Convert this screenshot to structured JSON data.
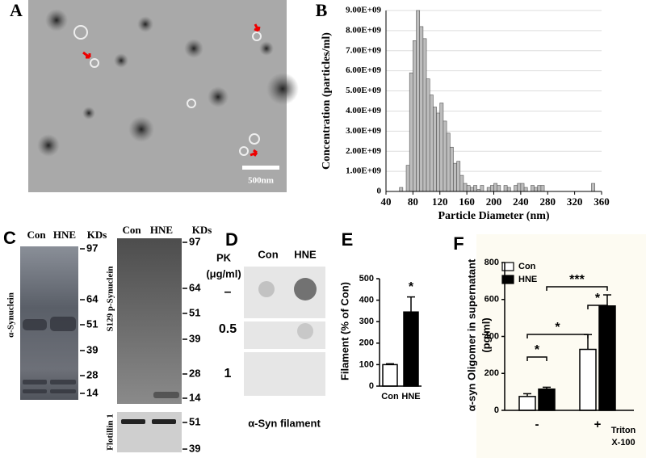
{
  "panel_a": {
    "label": "A",
    "scale_bar": "500nm"
  },
  "panel_c": {
    "label": "C",
    "left_blot": {
      "lanes": [
        "Con",
        "HNE"
      ],
      "unit": "KDs",
      "protein": "α-Synuclein",
      "markers": [
        97,
        64,
        51,
        39,
        28,
        14
      ]
    },
    "right_blot": {
      "lanes": [
        "Con",
        "HNE"
      ],
      "unit": "KDs",
      "protein": "S129 p-Synuclein",
      "markers": [
        97,
        64,
        51,
        39,
        28,
        14
      ],
      "loading_control": "Flotillin 1",
      "loading_markers": [
        51,
        39
      ]
    }
  },
  "panel_d": {
    "label": "D",
    "lanes": [
      "Con",
      "HNE"
    ],
    "pk_label": "PK",
    "pk_unit": "(μg/ml)",
    "doses": [
      "–",
      "0.5",
      "1"
    ],
    "caption": "α-Syn filament"
  },
  "chart_data": [
    {
      "type": "histogram",
      "panel_label": "B",
      "xlabel": "Particle Diameter (nm)",
      "ylabel": "Concentration (particles/ml)",
      "bins": [
        60,
        65,
        70,
        75,
        80,
        85,
        90,
        95,
        100,
        105,
        110,
        115,
        120,
        125,
        130,
        135,
        140,
        145,
        150,
        155,
        160,
        165,
        170,
        175,
        180,
        185,
        190,
        195,
        200,
        205,
        210,
        215,
        220,
        225,
        230,
        235,
        240,
        245,
        250,
        255,
        260,
        265,
        270,
        275,
        280,
        285,
        290,
        295,
        300,
        305,
        310,
        315,
        320,
        325,
        330,
        335,
        340,
        345,
        350
      ],
      "counts": [
        200000000.0,
        0,
        1300000000.0,
        5900000000.0,
        7500000000.0,
        9000000000.0,
        8200000000.0,
        7600000000.0,
        5600000000.0,
        4800000000.0,
        4200000000.0,
        3900000000.0,
        4400000000.0,
        3500000000.0,
        2900000000.0,
        2200000000.0,
        1400000000.0,
        1500000000.0,
        800000000.0,
        400000000.0,
        300000000.0,
        200000000.0,
        300000000.0,
        100000000.0,
        300000000.0,
        0,
        200000000.0,
        300000000.0,
        400000000.0,
        300000000.0,
        0,
        300000000.0,
        200000000.0,
        0,
        300000000.0,
        400000000.0,
        400000000.0,
        200000000.0,
        0,
        300000000.0,
        200000000.0,
        300000000.0,
        300000000.0,
        0,
        0,
        0,
        0,
        0,
        0,
        0,
        0,
        0,
        0,
        0,
        0,
        0,
        0,
        400000000.0
      ],
      "color": "#bdbdbd",
      "xlim": [
        40,
        360
      ],
      "xticks": [
        40,
        80,
        120,
        160,
        200,
        240,
        280,
        320,
        360
      ],
      "ylim": [
        0,
        9000000000.0
      ],
      "yticks": [
        0,
        {
          "value": 1000000000.0,
          "label": "1.00E+09"
        },
        {
          "value": 2000000000.0,
          "label": "2.00E+09"
        },
        {
          "value": 3000000000.0,
          "label": "3.00E+09"
        },
        {
          "value": 4000000000.0,
          "label": "4.00E+09"
        },
        {
          "value": 5000000000.0,
          "label": "5.00E+09"
        },
        {
          "value": 6000000000.0,
          "label": "6.00E+09"
        },
        {
          "value": 7000000000.0,
          "label": "7.00E+09"
        },
        {
          "value": 8000000000.0,
          "label": "8.00E+09"
        },
        {
          "value": 9000000000.0,
          "label": "9.00E+09"
        }
      ],
      "grid": true
    },
    {
      "type": "bar",
      "panel_label": "E",
      "ylabel": "Filament (% of Con)",
      "categories": [
        "Con",
        "HNE"
      ],
      "values": [
        100,
        345
      ],
      "errors": [
        4,
        70
      ],
      "colors": [
        "#ffffff",
        "#000000"
      ],
      "ylim": [
        0,
        500
      ],
      "yticks": [
        0,
        100,
        200,
        300,
        400,
        500
      ],
      "annotations": [
        "*"
      ]
    },
    {
      "type": "grouped_bar",
      "panel_label": "F",
      "ylabel": "α-syn Oligomer in supernatant",
      "ylabel_unit": "(pg/ml)",
      "categories": [
        "-",
        "+"
      ],
      "series": [
        {
          "name": "Con",
          "color": "#ffffff",
          "values": [
            75,
            330
          ],
          "errors": [
            15,
            80
          ]
        },
        {
          "name": "HNE",
          "color": "#000000",
          "values": [
            115,
            565
          ],
          "errors": [
            10,
            60
          ]
        }
      ],
      "ylim": [
        0,
        800
      ],
      "yticks": [
        0,
        200,
        400,
        600,
        800
      ],
      "xlabel_lines": [
        "Triton",
        "X-100"
      ],
      "legend": "top-left",
      "annotations": [
        "*",
        "*",
        "*",
        "***"
      ]
    }
  ]
}
